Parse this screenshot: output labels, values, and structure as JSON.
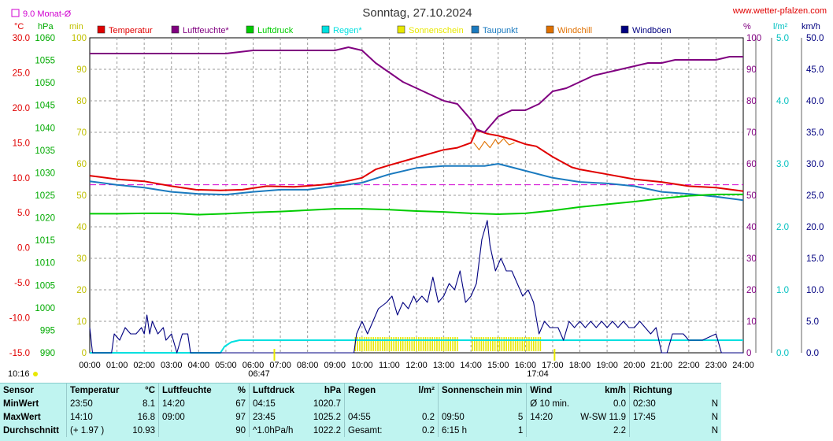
{
  "title": "Sonntag, 27.10.2024",
  "site": "www.wetter-pfalzen.com",
  "monthly_avg_label": "9.0 Monat-Ø",
  "units": {
    "c": "°C",
    "hpa": "hPa",
    "min": "min",
    "pct": "%",
    "lm2": "l/m²",
    "kmh": "km/h"
  },
  "legend": [
    {
      "label": "Temperatur",
      "color": "#e00000"
    },
    {
      "label": "Luftfeuchte*",
      "color": "#800080"
    },
    {
      "label": "Luftdruck",
      "color": "#00cc00"
    },
    {
      "label": "Regen*",
      "color": "#00e0e0"
    },
    {
      "label": "Sonnenschein",
      "color": "#e8e800"
    },
    {
      "label": "Taupunkt",
      "color": "#1a7abf"
    },
    {
      "label": "Windchill",
      "color": "#e07000"
    },
    {
      "label": "Windböen",
      "color": "#000080"
    }
  ],
  "sunrise": "06:47",
  "sunset": "17:04",
  "day_length": "10:16",
  "chart_data": {
    "type": "line",
    "title": "Sonntag, 27.10.2024",
    "x_ticks": [
      "00:00",
      "01:00",
      "02:00",
      "03:00",
      "04:00",
      "05:00",
      "06:00",
      "07:00",
      "08:00",
      "09:00",
      "10:00",
      "11:00",
      "12:00",
      "13:00",
      "14:00",
      "15:00",
      "16:00",
      "17:00",
      "18:00",
      "19:00",
      "20:00",
      "21:00",
      "22:00",
      "23:00",
      "24:00"
    ],
    "axes": {
      "temp_c": {
        "ticks": [
          "30.0",
          "25.0",
          "20.0",
          "15.0",
          "10.0",
          "5.0",
          "0.0",
          "-5.0",
          "-10.0",
          "-15.0"
        ],
        "range": [
          -15,
          30
        ],
        "color": "#e00000"
      },
      "pressure_hpa": {
        "ticks": [
          "1060",
          "1055",
          "1050",
          "1045",
          "1040",
          "1035",
          "1030",
          "1025",
          "1020",
          "1015",
          "1010",
          "1005",
          "1000",
          "995",
          "990"
        ],
        "range": [
          990,
          1060
        ],
        "color": "#00aa00"
      },
      "sun_min": {
        "ticks": [
          "100",
          "90",
          "80",
          "70",
          "60",
          "50",
          "40",
          "30",
          "20",
          "10",
          "0"
        ],
        "range": [
          0,
          100
        ],
        "color": "#c0c000"
      },
      "humidity_pct": {
        "ticks": [
          "100",
          "90",
          "80",
          "70",
          "60",
          "50",
          "40",
          "30",
          "20",
          "10",
          "0"
        ],
        "range": [
          0,
          100
        ],
        "color": "#800080"
      },
      "rain_lm2": {
        "ticks": [
          "5.0",
          "4.0",
          "3.0",
          "2.0",
          "1.0",
          "0.0"
        ],
        "range": [
          0,
          5
        ],
        "color": "#00c0c0"
      },
      "wind_kmh": {
        "ticks": [
          "50.0",
          "45.0",
          "40.0",
          "35.0",
          "30.0",
          "25.0",
          "20.0",
          "15.0",
          "10.0",
          "5.0",
          "0.0"
        ],
        "range": [
          0,
          50
        ],
        "color": "#000080"
      }
    },
    "monthly_avg_temp": 9.0,
    "series": [
      {
        "name": "Temperatur",
        "axis": "temp_c",
        "color": "#e00000",
        "points": [
          [
            0,
            10.3
          ],
          [
            1,
            9.8
          ],
          [
            2,
            9.5
          ],
          [
            3,
            8.8
          ],
          [
            3.9,
            8.3
          ],
          [
            4.8,
            8.2
          ],
          [
            5.6,
            8.3
          ],
          [
            6.5,
            8.8
          ],
          [
            7.5,
            8.7
          ],
          [
            8.5,
            9.0
          ],
          [
            9.3,
            9.4
          ],
          [
            10,
            10.0
          ],
          [
            10.5,
            11.2
          ],
          [
            11,
            11.8
          ],
          [
            12,
            12.9
          ],
          [
            13,
            14.0
          ],
          [
            13.5,
            14.3
          ],
          [
            14,
            15.0
          ],
          [
            14.2,
            16.8
          ],
          [
            14.6,
            16.3
          ],
          [
            15,
            16.0
          ],
          [
            15.5,
            15.5
          ],
          [
            16,
            14.8
          ],
          [
            16.4,
            14.5
          ],
          [
            17,
            13.0
          ],
          [
            17.7,
            11.5
          ],
          [
            18,
            11.2
          ],
          [
            19,
            10.5
          ],
          [
            20,
            9.8
          ],
          [
            21,
            9.4
          ],
          [
            22,
            8.8
          ],
          [
            23,
            8.6
          ],
          [
            24,
            8.1
          ]
        ]
      },
      {
        "name": "Taupunkt",
        "axis": "temp_c",
        "color": "#1a7abf",
        "points": [
          [
            0,
            9.5
          ],
          [
            1,
            9.0
          ],
          [
            2,
            8.6
          ],
          [
            3,
            8.0
          ],
          [
            4,
            7.7
          ],
          [
            5,
            7.6
          ],
          [
            6,
            8.0
          ],
          [
            7,
            8.3
          ],
          [
            8,
            8.3
          ],
          [
            9,
            8.8
          ],
          [
            10,
            9.3
          ],
          [
            11,
            10.5
          ],
          [
            12,
            11.4
          ],
          [
            13,
            11.7
          ],
          [
            14,
            11.7
          ],
          [
            14.5,
            11.7
          ],
          [
            15,
            12.0
          ],
          [
            15.5,
            11.5
          ],
          [
            16,
            11.0
          ],
          [
            17,
            10.0
          ],
          [
            18,
            9.4
          ],
          [
            19,
            9.2
          ],
          [
            20,
            8.8
          ],
          [
            21,
            8.0
          ],
          [
            22,
            7.7
          ],
          [
            23,
            7.3
          ],
          [
            24,
            6.8
          ]
        ]
      },
      {
        "name": "Windchill",
        "axis": "temp_c",
        "color": "#e07000",
        "points": [
          [
            14.1,
            15.0
          ],
          [
            14.3,
            14.0
          ],
          [
            14.5,
            15.2
          ],
          [
            14.7,
            14.3
          ],
          [
            14.9,
            15.5
          ],
          [
            15,
            14.8
          ],
          [
            15.2,
            15.6
          ],
          [
            15.4,
            14.7
          ],
          [
            15.6,
            15.0
          ]
        ]
      },
      {
        "name": "Luftfeuchte*",
        "axis": "humidity_pct",
        "color": "#800080",
        "points": [
          [
            0,
            95
          ],
          [
            1,
            95
          ],
          [
            2,
            95
          ],
          [
            3,
            95
          ],
          [
            4,
            95
          ],
          [
            5,
            95
          ],
          [
            6,
            96
          ],
          [
            7,
            96
          ],
          [
            8,
            96
          ],
          [
            9,
            96
          ],
          [
            9.5,
            97
          ],
          [
            10,
            96
          ],
          [
            10.5,
            92
          ],
          [
            11,
            89
          ],
          [
            11.5,
            86
          ],
          [
            12,
            84
          ],
          [
            12.5,
            82
          ],
          [
            13,
            80
          ],
          [
            13.5,
            79
          ],
          [
            14,
            74
          ],
          [
            14.2,
            71
          ],
          [
            14.5,
            70
          ],
          [
            15,
            75
          ],
          [
            15.5,
            77
          ],
          [
            16,
            77
          ],
          [
            16.5,
            79
          ],
          [
            17,
            83
          ],
          [
            17.5,
            84
          ],
          [
            18,
            86
          ],
          [
            18.5,
            88
          ],
          [
            19,
            89
          ],
          [
            19.5,
            90
          ],
          [
            20,
            91
          ],
          [
            20.5,
            92
          ],
          [
            21,
            92
          ],
          [
            21.5,
            93
          ],
          [
            22,
            93
          ],
          [
            22.5,
            93
          ],
          [
            23,
            93
          ],
          [
            23.5,
            94
          ],
          [
            24,
            94
          ]
        ]
      },
      {
        "name": "Luftdruck",
        "axis": "pressure_hpa",
        "color": "#00cc00",
        "points": [
          [
            0,
            1020.9
          ],
          [
            1,
            1020.9
          ],
          [
            2,
            1021.0
          ],
          [
            3,
            1021.0
          ],
          [
            4,
            1020.7
          ],
          [
            5,
            1020.9
          ],
          [
            6,
            1021.2
          ],
          [
            7,
            1021.4
          ],
          [
            8,
            1021.7
          ],
          [
            9,
            1022.0
          ],
          [
            10,
            1022.0
          ],
          [
            11,
            1021.8
          ],
          [
            12,
            1021.5
          ],
          [
            13,
            1021.3
          ],
          [
            14,
            1021.0
          ],
          [
            15,
            1020.8
          ],
          [
            16,
            1021.0
          ],
          [
            17,
            1021.6
          ],
          [
            18,
            1022.4
          ],
          [
            19,
            1023.0
          ],
          [
            20,
            1023.6
          ],
          [
            21,
            1024.3
          ],
          [
            22,
            1024.9
          ],
          [
            23,
            1025.2
          ],
          [
            24,
            1025.2
          ]
        ]
      },
      {
        "name": "Regen*",
        "axis": "rain_lm2",
        "color": "#00e0e0",
        "points": [
          [
            0,
            0
          ],
          [
            4.8,
            0
          ],
          [
            4.95,
            0.1
          ],
          [
            5.2,
            0.17
          ],
          [
            5.5,
            0.2
          ],
          [
            6,
            0.2
          ],
          [
            24,
            0.2
          ]
        ]
      },
      {
        "name": "Windböen",
        "axis": "wind_kmh",
        "color": "#000080",
        "points": [
          [
            0,
            4.0
          ],
          [
            0.1,
            0
          ],
          [
            0.8,
            0
          ],
          [
            0.9,
            3
          ],
          [
            1.1,
            2
          ],
          [
            1.3,
            4
          ],
          [
            1.5,
            3
          ],
          [
            1.7,
            3
          ],
          [
            1.9,
            4
          ],
          [
            2,
            3
          ],
          [
            2.1,
            6
          ],
          [
            2.2,
            3
          ],
          [
            2.3,
            5
          ],
          [
            2.5,
            3
          ],
          [
            2.7,
            4
          ],
          [
            2.8,
            2
          ],
          [
            3,
            3
          ],
          [
            3.2,
            0
          ],
          [
            3.4,
            3
          ],
          [
            3.6,
            3
          ],
          [
            3.7,
            0
          ],
          [
            9.7,
            0
          ],
          [
            9.8,
            3
          ],
          [
            10,
            5
          ],
          [
            10.2,
            3
          ],
          [
            10.4,
            5
          ],
          [
            10.6,
            7
          ],
          [
            10.9,
            8
          ],
          [
            11.1,
            9
          ],
          [
            11.3,
            6
          ],
          [
            11.5,
            8
          ],
          [
            11.7,
            7
          ],
          [
            11.9,
            9
          ],
          [
            12,
            8
          ],
          [
            12.2,
            9
          ],
          [
            12.4,
            8
          ],
          [
            12.6,
            12
          ],
          [
            12.8,
            8
          ],
          [
            13,
            9
          ],
          [
            13.2,
            11
          ],
          [
            13.4,
            10
          ],
          [
            13.6,
            13
          ],
          [
            13.8,
            8
          ],
          [
            14,
            9
          ],
          [
            14.2,
            11
          ],
          [
            14.4,
            18
          ],
          [
            14.6,
            21
          ],
          [
            14.7,
            17
          ],
          [
            14.9,
            13
          ],
          [
            15.1,
            15
          ],
          [
            15.3,
            13
          ],
          [
            15.5,
            13
          ],
          [
            15.7,
            11
          ],
          [
            15.9,
            9
          ],
          [
            16.1,
            10
          ],
          [
            16.3,
            8
          ],
          [
            16.5,
            3
          ],
          [
            16.7,
            5
          ],
          [
            16.9,
            4
          ],
          [
            17,
            4
          ],
          [
            17.2,
            4
          ],
          [
            17.4,
            2
          ],
          [
            17.6,
            5
          ],
          [
            17.8,
            4
          ],
          [
            18,
            5
          ],
          [
            18.2,
            4
          ],
          [
            18.4,
            5
          ],
          [
            18.6,
            4
          ],
          [
            18.8,
            5
          ],
          [
            19,
            4
          ],
          [
            19.2,
            5
          ],
          [
            19.4,
            4
          ],
          [
            19.6,
            5
          ],
          [
            19.8,
            4
          ],
          [
            20,
            4
          ],
          [
            20.2,
            5
          ],
          [
            20.4,
            4
          ],
          [
            20.6,
            3
          ],
          [
            20.8,
            4
          ],
          [
            21,
            0
          ],
          [
            21.2,
            0
          ],
          [
            21.4,
            3
          ],
          [
            21.6,
            3
          ],
          [
            21.8,
            3
          ],
          [
            22,
            2
          ],
          [
            22.5,
            2
          ],
          [
            23,
            3
          ],
          [
            23.2,
            0
          ],
          [
            24,
            0
          ]
        ]
      }
    ],
    "sunshine_intervals": [
      [
        9.75,
        13.55
      ],
      [
        14.05,
        16.6
      ]
    ]
  },
  "table": {
    "headers": [
      "Sensor",
      "Temperatur",
      "°C",
      "Luftfeuchte",
      "%",
      "Luftdruck",
      "hPa",
      "Regen",
      "l/m²",
      "Sonnenschein min",
      "Wind",
      "km/h",
      "Richtung"
    ],
    "rows": [
      {
        "label": "MinWert",
        "temp_time": "23:50",
        "temp_val": "8.1",
        "hum_time": "14:20",
        "hum_val": "67",
        "press_time": "04:15",
        "press_val": "1020.7",
        "rain_time": "",
        "rain_val": "",
        "sun_time": "",
        "sun_val": "",
        "wind_time": "Ø 10 min.",
        "wind_val": "0.0",
        "dir_time": "02:30",
        "dir_val": "N"
      },
      {
        "label": "MaxWert",
        "temp_time": "14:10",
        "temp_val": "16.8",
        "hum_time": "09:00",
        "hum_val": "97",
        "press_time": "23:45",
        "press_val": "1025.2",
        "rain_time": "04:55",
        "rain_val": "0.2",
        "sun_time": "09:50",
        "sun_val": "5",
        "wind_time": "14:20",
        "wind_val": "W-SW 11.9",
        "dir_time": "17:45",
        "dir_val": "N"
      },
      {
        "label": "Durchschnitt",
        "temp_time": "(+ 1.97 )",
        "temp_val": "10.93",
        "hum_time": "",
        "hum_val": "90",
        "press_time": "^1.0hPa/h",
        "press_val": "1022.2",
        "rain_time": "Gesamt:",
        "rain_val": "0.2",
        "sun_time": "6:15 h",
        "sun_val": "1",
        "wind_time": "",
        "wind_val": "2.2",
        "dir_time": "",
        "dir_val": "N"
      }
    ]
  }
}
